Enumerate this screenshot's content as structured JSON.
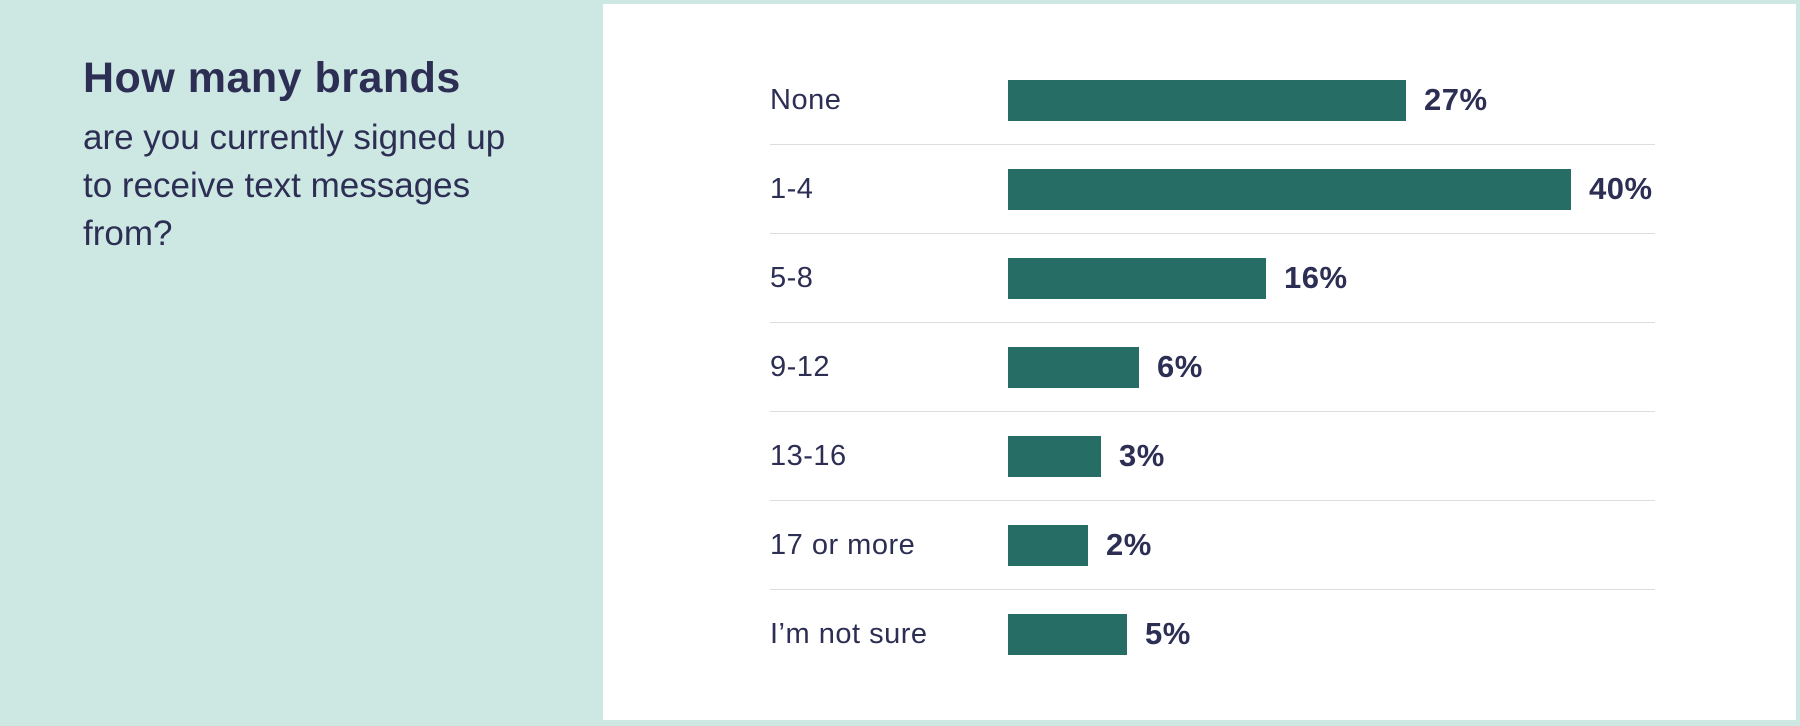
{
  "question": {
    "title": "How many brands",
    "subtitle": "are you currently signed up to receive text messages from?"
  },
  "chart_data": {
    "type": "bar",
    "orientation": "horizontal",
    "title": "How many brands are you currently signed up to receive text messages from?",
    "categories": [
      "None",
      "1-4",
      "5-8",
      "9-12",
      "13-16",
      "17 or more",
      "I’m not sure"
    ],
    "values": [
      27,
      40,
      16,
      6,
      3,
      2,
      5
    ],
    "value_labels": [
      "27%",
      "40%",
      "16%",
      "6%",
      "3%",
      "2%",
      "5%"
    ],
    "xlabel": "",
    "ylabel": "",
    "xlim": [
      0,
      40
    ],
    "grid": false,
    "legend": false,
    "row_dividers": true,
    "colors": {
      "bar": "#266d66",
      "text": "#2d2e54",
      "divider": "#dcdce1",
      "panel_background": "#ffffff",
      "page_background": "#cde8e2"
    }
  }
}
